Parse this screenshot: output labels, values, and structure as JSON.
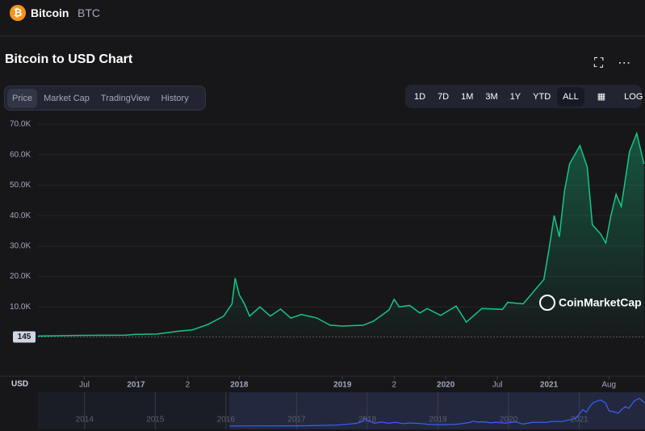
{
  "header": {
    "name": "Bitcoin",
    "symbol": "BTC"
  },
  "title": "Bitcoin to USD Chart",
  "tabs": [
    "Price",
    "Market Cap",
    "TradingView",
    "History"
  ],
  "ranges": [
    "1D",
    "7D",
    "1M",
    "3M",
    "1Y",
    "YTD",
    "ALL"
  ],
  "log": "LOG",
  "chart_data": {
    "type": "line",
    "color": "#16c784",
    "x": [
      2016.05,
      2016.5,
      2016.9,
      2017.0,
      2017.2,
      2017.4,
      2017.55,
      2017.7,
      2017.85,
      2017.93,
      2017.96,
      2018.0,
      2018.05,
      2018.1,
      2018.2,
      2018.3,
      2018.4,
      2018.5,
      2018.6,
      2018.75,
      2018.88,
      2019.0,
      2019.2,
      2019.3,
      2019.45,
      2019.5,
      2019.55,
      2019.65,
      2019.75,
      2019.82,
      2019.95,
      2020.1,
      2020.2,
      2020.35,
      2020.55,
      2020.6,
      2020.75,
      2020.85,
      2020.95,
      2021.0,
      2021.05,
      2021.1,
      2021.15,
      2021.2,
      2021.3,
      2021.37,
      2021.42,
      2021.5,
      2021.55,
      2021.6,
      2021.65,
      2021.7,
      2021.78,
      2021.85,
      2021.92
    ],
    "values": [
      430,
      650,
      750,
      1000,
      1100,
      2000,
      2500,
      4300,
      7000,
      11000,
      19500,
      14000,
      11000,
      7000,
      10000,
      7000,
      9300,
      6300,
      7500,
      6400,
      4000,
      3700,
      4000,
      5300,
      9000,
      12500,
      10000,
      10500,
      8000,
      9500,
      7200,
      10300,
      5000,
      9500,
      9200,
      11500,
      11000,
      15000,
      19000,
      29000,
      40000,
      33000,
      48000,
      57000,
      63000,
      56000,
      37000,
      34000,
      31000,
      40000,
      47000,
      43000,
      61000,
      67000,
      57000
    ],
    "xlim": [
      2016.05,
      2021.93
    ],
    "ylim": [
      0,
      70000
    ],
    "yticks": [
      {
        "value": 10000,
        "label": "10.0K"
      },
      {
        "value": 20000,
        "label": "20.0K"
      },
      {
        "value": 30000,
        "label": "30.0K"
      },
      {
        "value": 40000,
        "label": "40.0K"
      },
      {
        "value": 50000,
        "label": "50.0K"
      },
      {
        "value": 60000,
        "label": "60.0K"
      },
      {
        "value": 70000,
        "label": "70.0K"
      }
    ],
    "xticks": [
      {
        "value": 2016.5,
        "label": "Jul"
      },
      2017,
      {
        "value": 2017.5,
        "label": "2"
      },
      2018,
      2019,
      {
        "value": 2019.5,
        "label": "2"
      },
      2020,
      {
        "value": 2020.5,
        "label": "Jul"
      },
      2021,
      {
        "value": 2021.58,
        "label": "Aug"
      }
    ],
    "grid": true,
    "start_marker": 145,
    "currency": "USD",
    "watermark": "CoinMarketCap",
    "navigator": {
      "xlim": [
        2013.34,
        2021.93
      ],
      "xticks": [
        2014,
        2015,
        2016,
        2017,
        2018,
        2019,
        2020,
        2021
      ]
    }
  }
}
